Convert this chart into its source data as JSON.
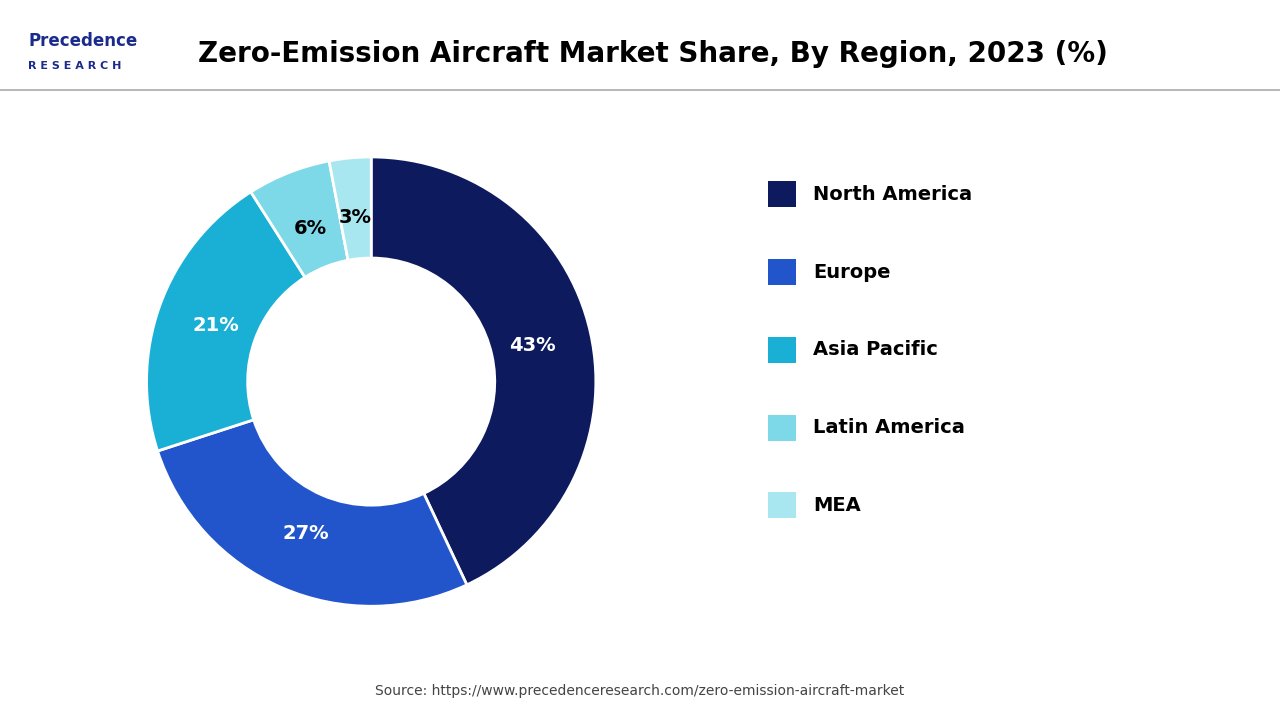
{
  "title": "Zero-Emission Aircraft Market Share, By Region, 2023 (%)",
  "labels": [
    "North America",
    "Europe",
    "Asia Pacific",
    "Latin America",
    "MEA"
  ],
  "values": [
    43,
    27,
    21,
    6,
    3
  ],
  "colors": [
    "#0d1b5e",
    "#2255cc",
    "#1ab0d5",
    "#7dd8e8",
    "#a8e6f0"
  ],
  "pct_labels": [
    "43%",
    "27%",
    "21%",
    "6%",
    "3%"
  ],
  "pct_colors": [
    "white",
    "white",
    "white",
    "black",
    "black"
  ],
  "source_text": "Source: https://www.precedenceresearch.com/zero-emission-aircraft-market",
  "background_color": "#ffffff",
  "start_angle": 90,
  "donut_width": 0.45
}
